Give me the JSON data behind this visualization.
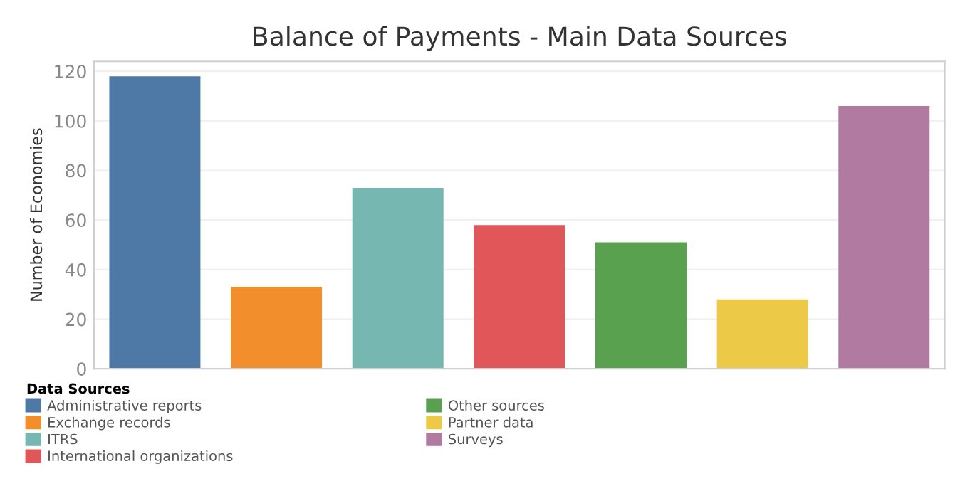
{
  "chart_data": {
    "type": "bar",
    "title": "Balance of Payments - Main Data Sources",
    "ylabel": "Number of Economies",
    "legend_title": "Data Sources",
    "categories": [
      null,
      null,
      null,
      null,
      null,
      null,
      null
    ],
    "series": [
      {
        "name": "Administrative reports",
        "color": "#4e79a7",
        "values": [
          118,
          null,
          null,
          null,
          null,
          null,
          null
        ]
      },
      {
        "name": "Exchange records",
        "color": "#f28e2b",
        "values": [
          null,
          33,
          null,
          null,
          null,
          null,
          null
        ]
      },
      {
        "name": "ITRS",
        "color": "#76b7b2",
        "values": [
          null,
          null,
          73,
          null,
          null,
          null,
          null
        ]
      },
      {
        "name": "International organizations",
        "color": "#e15759",
        "values": [
          null,
          null,
          null,
          58,
          null,
          null,
          null
        ]
      },
      {
        "name": "Other sources",
        "color": "#59a14f",
        "values": [
          null,
          null,
          null,
          null,
          51,
          null,
          null
        ]
      },
      {
        "name": "Partner data",
        "color": "#edc948",
        "values": [
          null,
          null,
          null,
          null,
          null,
          28,
          null
        ]
      },
      {
        "name": "Surveys",
        "color": "#b07aa1",
        "values": [
          null,
          null,
          null,
          null,
          null,
          null,
          106
        ]
      }
    ],
    "ylim": [
      0,
      124
    ],
    "yticks": [
      0,
      20,
      40,
      60,
      80,
      100,
      120
    ],
    "grid": "y",
    "legend": "bottom left",
    "tick_labels": "y"
  }
}
